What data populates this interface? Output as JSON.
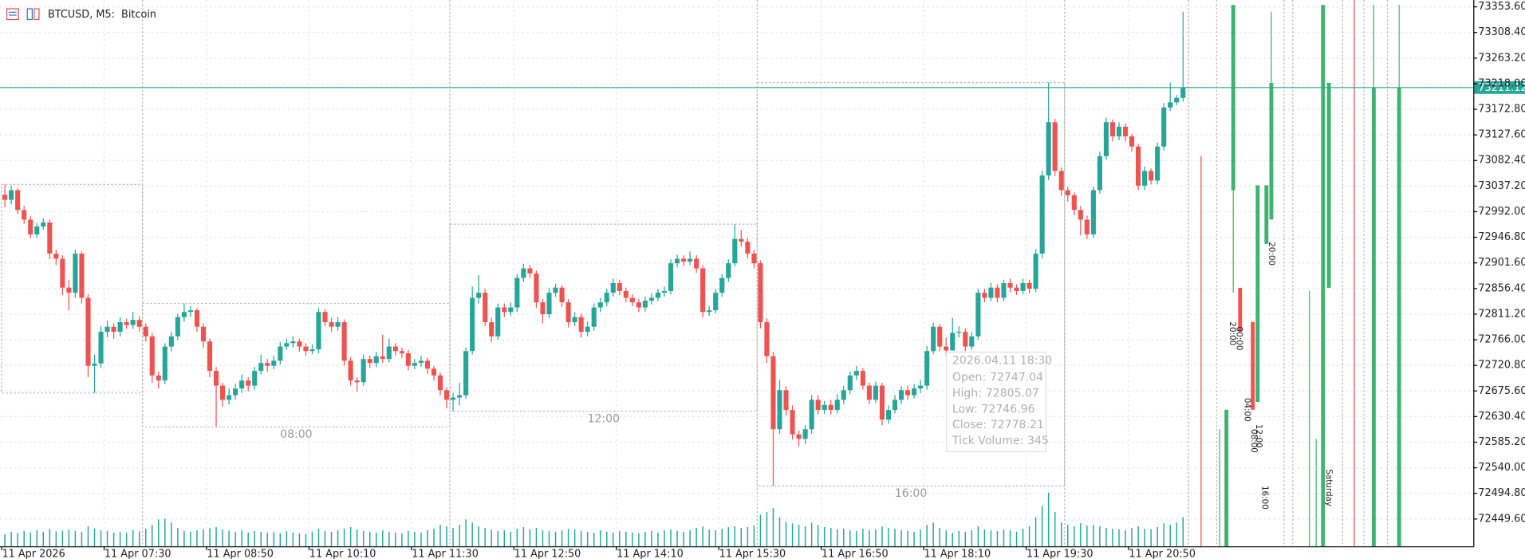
{
  "chart_data": {
    "type": "candlestick",
    "title": "BTCUSD, M5:  Bitcoin",
    "up_color": "#26a69a",
    "down_color": "#ef5350",
    "volume_color": "#26a69a",
    "grid": true,
    "xlim": [
      -0.762,
      229.33
    ],
    "ylim": [
      72401.4,
      73365.65
    ],
    "xticks": [
      {
        "value": 0,
        "label": "11 Apr 2026"
      },
      {
        "value": 16,
        "label": "11 Apr 07:30"
      },
      {
        "value": 32,
        "label": "11 Apr 08:50"
      },
      {
        "value": 48,
        "label": "11 Apr 10:10"
      },
      {
        "value": 64,
        "label": "11 Apr 11:30"
      },
      {
        "value": 80,
        "label": "11 Apr 12:50"
      },
      {
        "value": 96,
        "label": "11 Apr 14:10"
      },
      {
        "value": 112,
        "label": "11 Apr 15:30"
      },
      {
        "value": 128,
        "label": "11 Apr 16:50"
      },
      {
        "value": 144,
        "label": "11 Apr 18:10"
      },
      {
        "value": 160,
        "label": "11 Apr 19:30"
      },
      {
        "value": 176,
        "label": "11 Apr 20:50"
      }
    ],
    "yticks": [
      {
        "value": 73353.6,
        "label": "73353.60"
      },
      {
        "value": 73308.4,
        "label": "73308.40"
      },
      {
        "value": 73263.2,
        "label": "73263.20"
      },
      {
        "value": 73218,
        "label": "73218.00"
      },
      {
        "value": 73172.8,
        "label": "73172.80"
      },
      {
        "value": 73127.6,
        "label": "73127.60"
      },
      {
        "value": 73082.4,
        "label": "73082.40"
      },
      {
        "value": 73037.2,
        "label": "73037.20"
      },
      {
        "value": 72992,
        "label": "72992.00"
      },
      {
        "value": 72946.8,
        "label": "72946.80"
      },
      {
        "value": 72901.6,
        "label": "72901.60"
      },
      {
        "value": 72856.4,
        "label": "72856.40"
      },
      {
        "value": 72811.2,
        "label": "72811.20"
      },
      {
        "value": 72766,
        "label": "72766.00"
      },
      {
        "value": 72720.8,
        "label": "72720.80"
      },
      {
        "value": 72675.6,
        "label": "72675.60"
      },
      {
        "value": 72630.4,
        "label": "72630.40"
      },
      {
        "value": 72585.2,
        "label": "72585.20"
      },
      {
        "value": 72540,
        "label": "72540.00"
      },
      {
        "value": 72494.8,
        "label": "72494.80"
      },
      {
        "value": 72449.6,
        "label": "72449.60"
      }
    ],
    "period_boxes": [
      {
        "from": 0,
        "to": 22
      },
      {
        "from": 22,
        "to": 70,
        "label": "08:00"
      },
      {
        "from": 70,
        "to": 118,
        "label": "12:00"
      },
      {
        "from": 118,
        "to": 166,
        "label": "16:00"
      }
    ],
    "candles": [
      [
        73022,
        73040,
        73000,
        73013
      ],
      [
        73013,
        73038,
        73005,
        73030
      ],
      [
        73030,
        73034,
        72988,
        72995
      ],
      [
        72995,
        73002,
        72970,
        72978
      ],
      [
        72978,
        72984,
        72945,
        72952
      ],
      [
        72952,
        72972,
        72946,
        72966
      ],
      [
        72966,
        72980,
        72960,
        72973
      ],
      [
        72973,
        72978,
        72908,
        72918
      ],
      [
        72918,
        72925,
        72898,
        72909
      ],
      [
        72909,
        72915,
        72845,
        72858
      ],
      [
        72858,
        72872,
        72818,
        72849
      ],
      [
        72849,
        72925,
        72840,
        72918
      ],
      [
        72918,
        72922,
        72830,
        72840
      ],
      [
        72840,
        72846,
        72700,
        72720
      ],
      [
        72720,
        72740,
        72672,
        72724
      ],
      [
        72724,
        72790,
        72716,
        72780
      ],
      [
        72780,
        72800,
        72770,
        72789
      ],
      [
        72789,
        72795,
        72768,
        72780
      ],
      [
        72780,
        72806,
        72772,
        72797
      ],
      [
        72797,
        72803,
        72785,
        72792
      ],
      [
        72792,
        72815,
        72785,
        72801
      ],
      [
        72801,
        72808,
        72780,
        72789
      ],
      [
        72789,
        72795,
        72763,
        72772
      ],
      [
        72772,
        72778,
        72690,
        72703
      ],
      [
        72703,
        72710,
        72680,
        72694
      ],
      [
        72694,
        72760,
        72688,
        72754
      ],
      [
        72754,
        72780,
        72745,
        72772
      ],
      [
        72772,
        72812,
        72765,
        72806
      ],
      [
        72806,
        72830,
        72798,
        72815
      ],
      [
        72815,
        72826,
        72806,
        72818
      ],
      [
        72818,
        72822,
        72780,
        72789
      ],
      [
        72789,
        72795,
        72752,
        72763
      ],
      [
        72763,
        72768,
        72700,
        72711
      ],
      [
        72711,
        72718,
        72612,
        72685
      ],
      [
        72685,
        72690,
        72648,
        72660
      ],
      [
        72660,
        72680,
        72652,
        72668
      ],
      [
        72668,
        72688,
        72660,
        72680
      ],
      [
        72680,
        72705,
        72672,
        72694
      ],
      [
        72694,
        72700,
        72675,
        72685
      ],
      [
        72685,
        72718,
        72678,
        72711
      ],
      [
        72711,
        72740,
        72705,
        72725
      ],
      [
        72725,
        72732,
        72710,
        72720
      ],
      [
        72720,
        72738,
        72714,
        72729
      ],
      [
        72729,
        72762,
        72722,
        72754
      ],
      [
        72754,
        72768,
        72748,
        72760
      ],
      [
        72760,
        72772,
        72752,
        72763
      ],
      [
        72763,
        72768,
        72745,
        72754
      ],
      [
        72754,
        72760,
        72738,
        72746
      ],
      [
        72746,
        72758,
        72740,
        72749
      ],
      [
        72749,
        72822,
        72742,
        72815
      ],
      [
        72815,
        72820,
        72790,
        72797
      ],
      [
        72797,
        72805,
        72780,
        72789
      ],
      [
        72789,
        72806,
        72782,
        72797
      ],
      [
        72797,
        72802,
        72720,
        72729
      ],
      [
        72729,
        72735,
        72685,
        72694
      ],
      [
        72694,
        72700,
        72675,
        72691
      ],
      [
        72691,
        72740,
        72685,
        72732
      ],
      [
        72732,
        72738,
        72716,
        72725
      ],
      [
        72725,
        72745,
        72718,
        72737
      ],
      [
        72737,
        72775,
        72725,
        72732
      ],
      [
        72732,
        72768,
        72726,
        72754
      ],
      [
        72754,
        72760,
        72738,
        72746
      ],
      [
        72746,
        72752,
        72734,
        72742
      ],
      [
        72742,
        72748,
        72712,
        72720
      ],
      [
        72720,
        72732,
        72714,
        72725
      ],
      [
        72725,
        72738,
        72718,
        72729
      ],
      [
        72729,
        72734,
        72706,
        72715
      ],
      [
        72715,
        72720,
        72694,
        72703
      ],
      [
        72703,
        72708,
        72668,
        72677
      ],
      [
        72677,
        72682,
        72645,
        72660
      ],
      [
        72660,
        72672,
        72640,
        72664
      ],
      [
        72664,
        72690,
        72650,
        72668
      ],
      [
        72668,
        72752,
        72662,
        72746
      ],
      [
        72746,
        72860,
        72740,
        72840
      ],
      [
        72840,
        72880,
        72830,
        72849
      ],
      [
        72849,
        72856,
        72790,
        72797
      ],
      [
        72797,
        72805,
        72762,
        72772
      ],
      [
        72772,
        72830,
        72766,
        72823
      ],
      [
        72823,
        72830,
        72806,
        72815
      ],
      [
        72815,
        72832,
        72808,
        72823
      ],
      [
        72823,
        72882,
        72815,
        72875
      ],
      [
        72875,
        72900,
        72868,
        72892
      ],
      [
        72892,
        72898,
        72875,
        72883
      ],
      [
        72883,
        72888,
        72822,
        72832
      ],
      [
        72832,
        72838,
        72795,
        72811
      ],
      [
        72811,
        72858,
        72804,
        72849
      ],
      [
        72849,
        72865,
        72842,
        72858
      ],
      [
        72858,
        72862,
        72824,
        72832
      ],
      [
        72832,
        72838,
        72788,
        72797
      ],
      [
        72797,
        72815,
        72790,
        72806
      ],
      [
        72806,
        72812,
        72770,
        72780
      ],
      [
        72780,
        72798,
        72772,
        72789
      ],
      [
        72789,
        72830,
        72782,
        72823
      ],
      [
        72823,
        72840,
        72815,
        72832
      ],
      [
        72832,
        72856,
        72825,
        72849
      ],
      [
        72849,
        72874,
        72842,
        72866
      ],
      [
        72866,
        72872,
        72845,
        72852
      ],
      [
        72852,
        72858,
        72832,
        72840
      ],
      [
        72840,
        72846,
        72825,
        72832
      ],
      [
        72832,
        72838,
        72815,
        72823
      ],
      [
        72823,
        72842,
        72816,
        72835
      ],
      [
        72835,
        72848,
        72828,
        72840
      ],
      [
        72840,
        72856,
        72834,
        72849
      ],
      [
        72849,
        72860,
        72842,
        72852
      ],
      [
        72852,
        72908,
        72846,
        72901
      ],
      [
        72901,
        72916,
        72894,
        72909
      ],
      [
        72909,
        72915,
        72896,
        72904
      ],
      [
        72904,
        72922,
        72898,
        72909
      ],
      [
        72909,
        72915,
        72884,
        72892
      ],
      [
        72892,
        72898,
        72805,
        72815
      ],
      [
        72815,
        72826,
        72808,
        72818
      ],
      [
        72818,
        72856,
        72812,
        72849
      ],
      [
        72849,
        72882,
        72842,
        72875
      ],
      [
        72875,
        72908,
        72868,
        72901
      ],
      [
        72901,
        72970,
        72895,
        72944
      ],
      [
        72944,
        72960,
        72930,
        72939
      ],
      [
        72939,
        72945,
        72910,
        72918
      ],
      [
        72918,
        72925,
        72892,
        72901
      ],
      [
        72901,
        72906,
        72786,
        72797
      ],
      [
        72797,
        72804,
        72725,
        72737
      ],
      [
        72737,
        72745,
        72508,
        72608
      ],
      [
        72608,
        72695,
        72600,
        72677
      ],
      [
        72677,
        72684,
        72632,
        72642
      ],
      [
        72642,
        72650,
        72590,
        72599
      ],
      [
        72599,
        72606,
        72578,
        72591
      ],
      [
        72591,
        72615,
        72582,
        72608
      ],
      [
        72608,
        72668,
        72600,
        72660
      ],
      [
        72660,
        72668,
        72634,
        72642
      ],
      [
        72642,
        72658,
        72635,
        72651
      ],
      [
        72651,
        72660,
        72634,
        72642
      ],
      [
        72642,
        72670,
        72636,
        72660
      ],
      [
        72660,
        72685,
        72652,
        72677
      ],
      [
        72677,
        72710,
        72670,
        72703
      ],
      [
        72703,
        72720,
        72695,
        72711
      ],
      [
        72711,
        72716,
        72678,
        72685
      ],
      [
        72685,
        72690,
        72652,
        72660
      ],
      [
        72660,
        72692,
        72654,
        72685
      ],
      [
        72685,
        72690,
        72615,
        72625
      ],
      [
        72625,
        72650,
        72618,
        72642
      ],
      [
        72642,
        72668,
        72636,
        72660
      ],
      [
        72660,
        72684,
        72652,
        72677
      ],
      [
        72677,
        72685,
        72660,
        72668
      ],
      [
        72668,
        72688,
        72662,
        72680
      ],
      [
        72680,
        72695,
        72672,
        72685
      ],
      [
        72685,
        72755,
        72678,
        72746
      ],
      [
        72746,
        72796,
        72740,
        72789
      ],
      [
        72789,
        72794,
        72746,
        72754
      ],
      [
        72754,
        72770,
        72738,
        72747.04
      ],
      [
        72747.04,
        72805.07,
        72746.96,
        72778.21
      ],
      [
        72778.21,
        72790,
        72770,
        72780
      ],
      [
        72780,
        72786,
        72746,
        72754
      ],
      [
        72754,
        72780,
        72748,
        72772
      ],
      [
        72772,
        72856,
        72766,
        72849
      ],
      [
        72849,
        72856,
        72832,
        72840
      ],
      [
        72840,
        72866,
        72834,
        72858
      ],
      [
        72858,
        72864,
        72832,
        72840
      ],
      [
        72840,
        72872,
        72834,
        72866
      ],
      [
        72866,
        72874,
        72850,
        72858
      ],
      [
        72858,
        72864,
        72845,
        72852
      ],
      [
        72852,
        72874,
        72846,
        72866
      ],
      [
        72866,
        72872,
        72848,
        72856
      ],
      [
        72856,
        72926,
        72850,
        72918
      ],
      [
        72918,
        73064,
        72910,
        73056
      ],
      [
        73056,
        73220,
        73048,
        73150
      ],
      [
        73150,
        73156,
        73055,
        73064
      ],
      [
        73064,
        73070,
        73020,
        73030
      ],
      [
        73030,
        73036,
        73010,
        73021
      ],
      [
        73021,
        73026,
        72986,
        72995
      ],
      [
        72995,
        73002,
        72950,
        72978
      ],
      [
        72978,
        72985,
        72944,
        72952
      ],
      [
        72952,
        73036,
        72946,
        73030
      ],
      [
        73030,
        73098,
        73024,
        73090
      ],
      [
        73090,
        73158,
        73084,
        73150
      ],
      [
        73150,
        73155,
        73116,
        73125
      ],
      [
        73125,
        73150,
        73118,
        73142
      ],
      [
        73142,
        73148,
        73116,
        73125
      ],
      [
        73125,
        73130,
        73098,
        73107
      ],
      [
        73107,
        73112,
        73030,
        73038
      ],
      [
        73038,
        73072,
        73030,
        73064
      ],
      [
        73064,
        73068,
        73040,
        73047
      ],
      [
        73047,
        73114,
        73040,
        73107
      ],
      [
        73107,
        73184,
        73100,
        73176
      ],
      [
        73176,
        73220,
        73170,
        73185
      ],
      [
        73185,
        73198,
        73180,
        73193
      ],
      [
        73193,
        73345,
        73186,
        73211.12
      ]
    ],
    "volumes": [
      320,
      380,
      350,
      400,
      360,
      420,
      380,
      450,
      390,
      410,
      430,
      400,
      380,
      520,
      460,
      420,
      400,
      360,
      380,
      350,
      420,
      390,
      460,
      560,
      700,
      720,
      620,
      480,
      400,
      380,
      420,
      450,
      470,
      500,
      440,
      410,
      380,
      420,
      360,
      400,
      380,
      350,
      370,
      340,
      390,
      360,
      340,
      320,
      380,
      460,
      400,
      380,
      420,
      460,
      500,
      440,
      400,
      380,
      360,
      420,
      380,
      360,
      340,
      400,
      380,
      360,
      420,
      460,
      560,
      520,
      480,
      560,
      700,
      620,
      520,
      480,
      440,
      400,
      420,
      380,
      460,
      500,
      440,
      480,
      420,
      400,
      380,
      420,
      460,
      440,
      400,
      380,
      360,
      420,
      380,
      360,
      400,
      380,
      360,
      340,
      380,
      400,
      360,
      420,
      440,
      400,
      380,
      420,
      480,
      520,
      440,
      420,
      460,
      500,
      520,
      480,
      500,
      540,
      820,
      900,
      1000,
      760,
      640,
      600,
      560,
      520,
      620,
      560,
      500,
      480,
      440,
      460,
      420,
      400,
      460,
      420,
      440,
      520,
      480,
      460,
      420,
      400,
      380,
      440,
      560,
      620,
      480,
      420,
      345,
      400,
      380,
      420,
      520,
      440,
      420,
      400,
      440,
      420,
      380,
      460,
      520,
      760,
      1050,
      1400,
      900,
      620,
      560,
      520,
      600,
      540,
      560,
      520,
      480,
      460,
      440,
      420,
      480,
      520,
      460,
      440,
      500,
      600,
      560,
      620,
      760
    ],
    "tooltip": {
      "time": "2026.04.11 18:30",
      "labels": [
        "Open:",
        "High:",
        "Low:",
        "Close:",
        "Tick Volume:"
      ]
    },
    "overlay_labels": [
      "20:00",
      "20:00",
      "00:00",
      "04:00",
      "12:00",
      "08:00",
      "16:00",
      "Saturday"
    ]
  }
}
